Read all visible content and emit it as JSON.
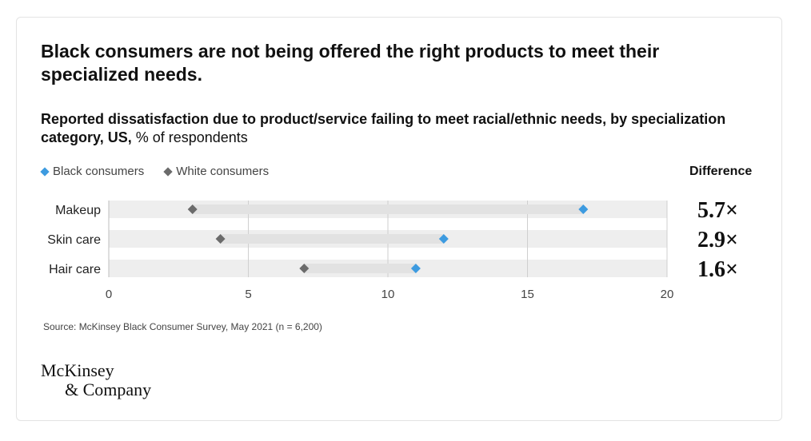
{
  "chart_data": {
    "type": "scatter",
    "title": "Black consumers are not being offered the right products to meet their specialized needs.",
    "subtitle_bold": "Reported dissatisfaction due to product/service failing to meet racial/ethnic needs, by specialization category, US,",
    "subtitle_rest": " % of respondents",
    "categories": [
      "Makeup",
      "Skin care",
      "Hair care"
    ],
    "series": [
      {
        "name": "Black consumers",
        "color": "#3d9be0",
        "values": [
          17,
          12,
          11
        ]
      },
      {
        "name": "White consumers",
        "color": "#6b6b6b",
        "values": [
          3,
          4,
          7
        ]
      }
    ],
    "xlim": [
      0,
      20
    ],
    "xticks": [
      "0",
      "5",
      "10",
      "15",
      "20"
    ],
    "xtick_values": [
      0,
      5,
      10,
      15,
      20
    ],
    "difference_header": "Difference",
    "differences": [
      "5.7×",
      "2.9×",
      "1.6×"
    ],
    "grid": true,
    "legend": "top-left"
  },
  "source": "Source: McKinsey Black Consumer Survey, May 2021 (n = 6,200)",
  "logo": {
    "line1": "McKinsey",
    "line2": "& Company"
  }
}
